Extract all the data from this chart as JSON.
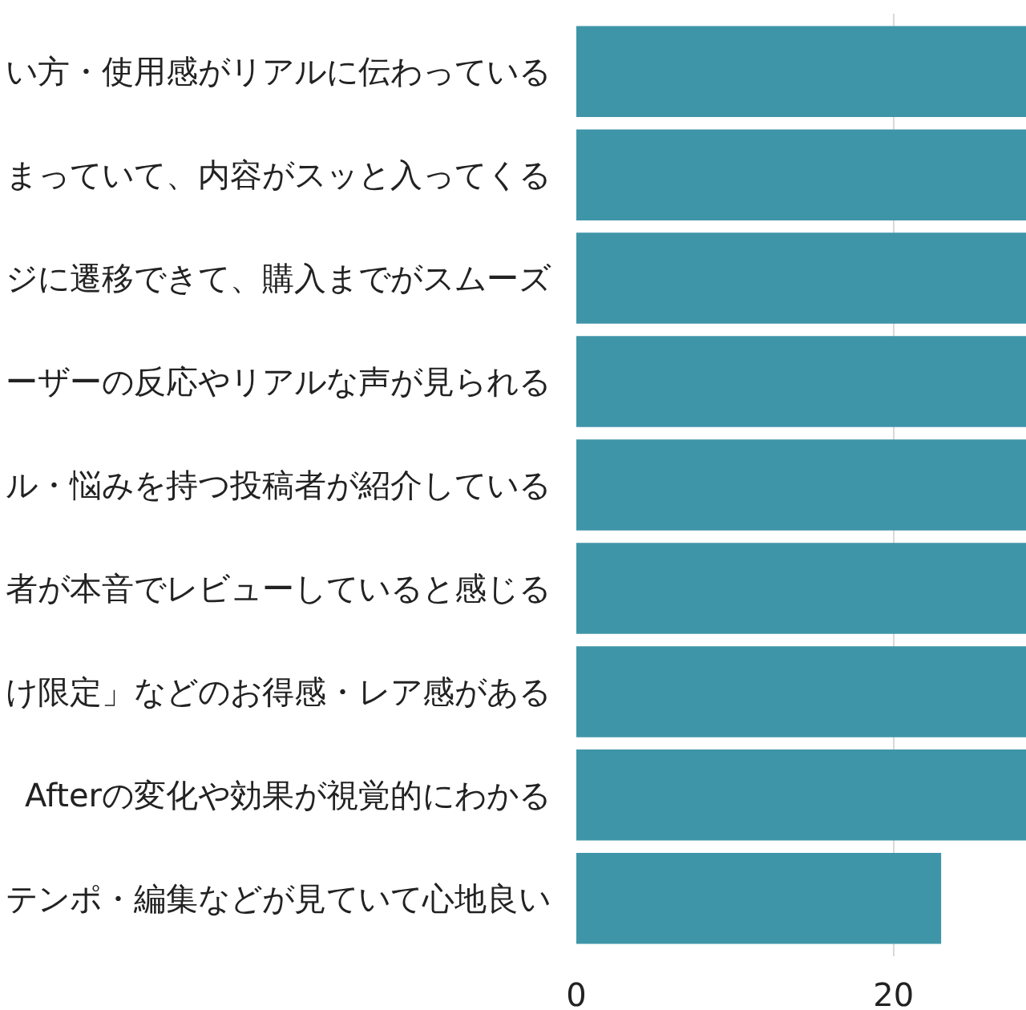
{
  "chart_data": {
    "type": "bar",
    "orientation": "horizontal",
    "categories": [
      "い方・使用感がリアルに伝わっている",
      "まっていて、内容がスッと入ってくる",
      "ジに遷移できて、購入までがスムーズ",
      "ーザーの反応やリアルな声が見られる",
      "ル・悩みを持つ投稿者が紹介している",
      "者が本音でレビューしていると感じる",
      "け限定」などのお得感・レア感がある",
      "Afterの変化や効果が視覚的にわかる",
      "テンポ・編集などが見ていて心地良い"
    ],
    "values": [
      28.4,
      28.4,
      28.4,
      28.4,
      28.4,
      28.4,
      28.4,
      28.4,
      23.0
    ],
    "color": "#3f95a8",
    "xlim": [
      0,
      28.4
    ],
    "xticks": [
      0,
      20
    ],
    "grid": "x"
  }
}
